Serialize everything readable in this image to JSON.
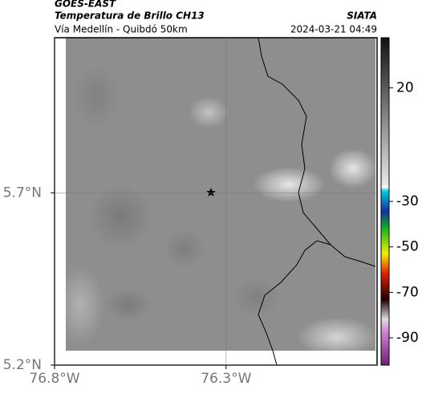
{
  "header": {
    "satellite": "GOES-EAST",
    "product": "Temperatura de Brillo CH13",
    "region": "Vía Medellín - Quibdó 50km",
    "source": "SIATA",
    "timestamp": "2024-03-21 04:49"
  },
  "map": {
    "xlim": [
      -76.8,
      -75.86
    ],
    "ylim": [
      5.2,
      6.15
    ],
    "xticks": [
      {
        "value": -76.8,
        "label": "76.8°W"
      },
      {
        "value": -76.3,
        "label": "76.3°W"
      }
    ],
    "yticks": [
      {
        "value": 5.2,
        "label": "5.2°N"
      },
      {
        "value": 5.7,
        "label": "5.7°N"
      }
    ],
    "grid": true
  },
  "colorbar": {
    "lim": [
      42,
      -102
    ],
    "ticks": [
      20,
      -30,
      -50,
      -70,
      -90
    ]
  }
}
